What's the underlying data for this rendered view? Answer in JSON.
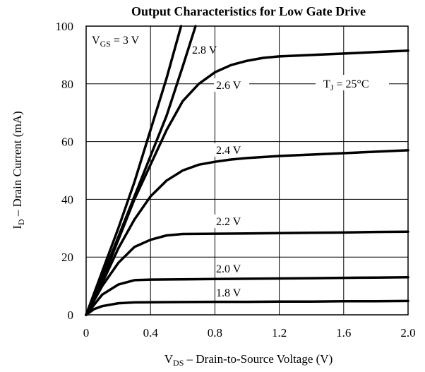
{
  "chart_data": {
    "type": "line",
    "title": "Output Characteristics for Low Gate Drive",
    "xlabel": {
      "main": "V",
      "sub": "DS",
      "rest": "  –  Drain-to-Source Voltage (V)"
    },
    "ylabel": {
      "main": "I",
      "sub": "D",
      "rest": " – Drain Current (mA)"
    },
    "xlim": [
      0,
      2.0
    ],
    "ylim": [
      0,
      100
    ],
    "x_ticks": [
      "0",
      "0.4",
      "0.8",
      "1.2",
      "1.6",
      "2.0"
    ],
    "y_ticks": [
      "0",
      "20",
      "40",
      "60",
      "80",
      "100"
    ],
    "grid": true,
    "annotation": {
      "main": "T",
      "sub": "J",
      "rest": " = 25°C"
    },
    "series": [
      {
        "name": "VGS = 3 V",
        "label": {
          "main": "V",
          "sub": "GS",
          "rest": " = 3 V"
        },
        "x": [
          0,
          0.1,
          0.2,
          0.3,
          0.4,
          0.5,
          0.59
        ],
        "y": [
          0,
          15,
          30,
          46,
          64,
          82,
          100
        ]
      },
      {
        "name": "2.8 V",
        "label": {
          "main": "2.8 V"
        },
        "x": [
          0,
          0.1,
          0.2,
          0.3,
          0.4,
          0.5,
          0.6,
          0.68
        ],
        "y": [
          0,
          13,
          27,
          41,
          55,
          69,
          86,
          100
        ]
      },
      {
        "name": "2.6 V",
        "label": {
          "main": "2.6 V"
        },
        "x": [
          0,
          0.1,
          0.2,
          0.3,
          0.4,
          0.5,
          0.6,
          0.7,
          0.8,
          0.9,
          1.0,
          1.1,
          1.2,
          1.4,
          1.6,
          1.8,
          2.0
        ],
        "y": [
          0,
          12,
          26,
          40,
          52,
          64,
          74,
          80,
          84,
          86.5,
          88,
          89,
          89.5,
          90,
          90.5,
          91,
          91.5
        ]
      },
      {
        "name": "2.4 V",
        "label": {
          "main": "2.4 V"
        },
        "x": [
          0,
          0.1,
          0.2,
          0.3,
          0.4,
          0.5,
          0.6,
          0.7,
          0.8,
          0.9,
          1.0,
          1.2,
          1.4,
          1.6,
          1.8,
          2.0
        ],
        "y": [
          0,
          11,
          23,
          33,
          41,
          46.5,
          50,
          52,
          53,
          53.8,
          54.3,
          55,
          55.5,
          56,
          56.5,
          57
        ]
      },
      {
        "name": "2.2 V",
        "label": {
          "main": "2.2 V"
        },
        "x": [
          0,
          0.1,
          0.2,
          0.3,
          0.4,
          0.5,
          0.6,
          0.8,
          1.0,
          1.2,
          1.4,
          1.6,
          1.8,
          2.0
        ],
        "y": [
          0,
          10,
          18,
          23.5,
          26,
          27.5,
          28,
          28.1,
          28.2,
          28.3,
          28.4,
          28.5,
          28.7,
          28.8
        ]
      },
      {
        "name": "2.0 V",
        "label": {
          "main": "2.0 V"
        },
        "x": [
          0,
          0.1,
          0.2,
          0.3,
          0.4,
          0.6,
          0.8,
          1.0,
          1.2,
          1.4,
          1.6,
          1.8,
          2.0
        ],
        "y": [
          0,
          7,
          10.5,
          12,
          12.2,
          12.3,
          12.4,
          12.5,
          12.6,
          12.7,
          12.8,
          12.9,
          13
        ]
      },
      {
        "name": "1.8 V",
        "label": {
          "main": "1.8 V"
        },
        "x": [
          0,
          0.05,
          0.1,
          0.2,
          0.3,
          0.5,
          0.8,
          1.0,
          1.2,
          1.4,
          1.6,
          1.8,
          2.0
        ],
        "y": [
          0,
          2,
          3,
          4,
          4.3,
          4.4,
          4.5,
          4.5,
          4.6,
          4.6,
          4.7,
          4.7,
          4.8
        ]
      }
    ]
  }
}
